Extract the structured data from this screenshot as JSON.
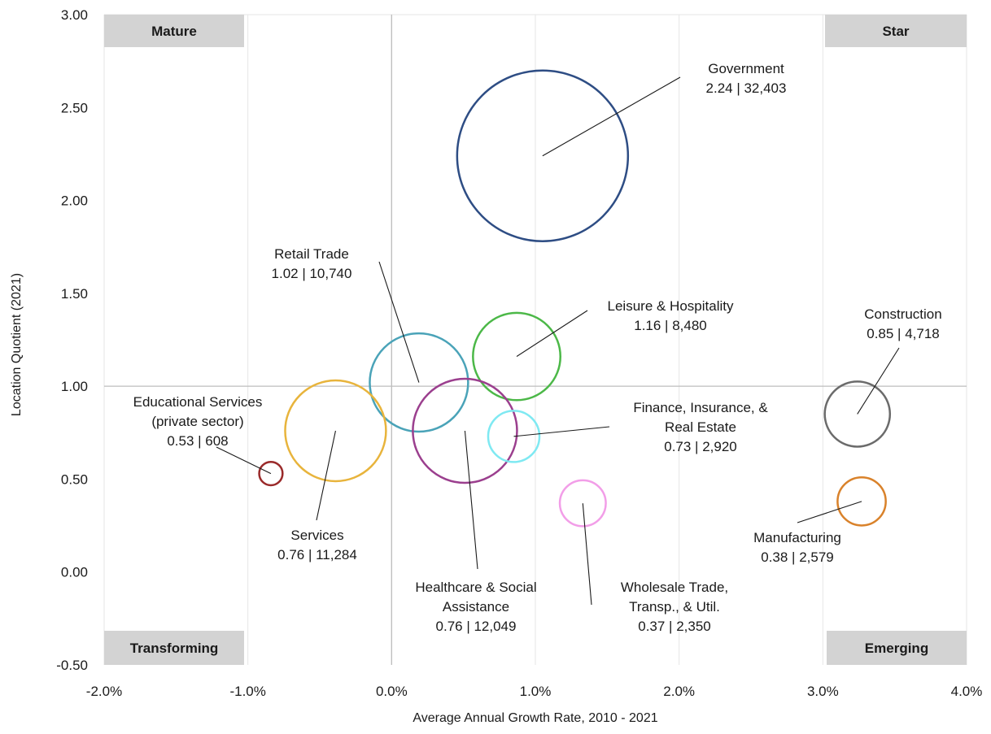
{
  "chart_data": {
    "type": "bubble",
    "title": "",
    "xlabel": "Average Annual Growth Rate, 2010 - 2021",
    "ylabel": "Location Quotient (2021)",
    "xlim": [
      -0.02,
      0.04
    ],
    "ylim": [
      -0.5,
      3.0
    ],
    "x_ticks": [
      {
        "value": -0.02,
        "label": "-2.0%"
      },
      {
        "value": -0.01,
        "label": "-1.0%"
      },
      {
        "value": 0.0,
        "label": "0.0%"
      },
      {
        "value": 0.01,
        "label": "1.0%"
      },
      {
        "value": 0.02,
        "label": "2.0%"
      },
      {
        "value": 0.03,
        "label": "3.0%"
      },
      {
        "value": 0.04,
        "label": "4.0%"
      }
    ],
    "y_ticks": [
      {
        "value": 3.0,
        "label": "3.00"
      },
      {
        "value": 2.5,
        "label": "2.50"
      },
      {
        "value": 2.0,
        "label": "2.00"
      },
      {
        "value": 1.5,
        "label": "1.50"
      },
      {
        "value": 1.0,
        "label": "1.00"
      },
      {
        "value": 0.5,
        "label": "0.50"
      },
      {
        "value": 0.0,
        "label": "0.00"
      },
      {
        "value": -0.5,
        "label": "-0.50"
      }
    ],
    "grid": "vertical",
    "reference_lines": {
      "x": 0.0,
      "y": 1.0
    },
    "quadrants": [
      {
        "label": "Mature",
        "position": "top-left"
      },
      {
        "label": "Star",
        "position": "top-right"
      },
      {
        "label": "Transforming",
        "position": "bottom-left"
      },
      {
        "label": "Emerging",
        "position": "bottom-right"
      }
    ],
    "series": [
      {
        "name": "Government",
        "label_lines": [
          "Government",
          "2.24 | 32,403"
        ],
        "x": 0.0105,
        "y": 2.24,
        "size": 32403,
        "color": "#2e4d84"
      },
      {
        "name": "Retail Trade",
        "label_lines": [
          "Retail Trade",
          "1.02 | 10,740"
        ],
        "x": 0.0019,
        "y": 1.02,
        "size": 10740,
        "color": "#4aa3b8"
      },
      {
        "name": "Leisure & Hospitality",
        "label_lines": [
          "Leisure & Hospitality",
          "1.16 | 8,480"
        ],
        "x": 0.0087,
        "y": 1.16,
        "size": 8480,
        "color": "#4cb848"
      },
      {
        "name": "Construction",
        "label_lines": [
          "Construction",
          "0.85 | 4,718"
        ],
        "x": 0.0324,
        "y": 0.85,
        "size": 4718,
        "color": "#6b6b6b"
      },
      {
        "name": "Educational Services (private sector)",
        "label_lines": [
          "Educational Services",
          "(private sector)",
          "0.53 | 608"
        ],
        "x": -0.0084,
        "y": 0.53,
        "size": 608,
        "color": "#9a2a2a"
      },
      {
        "name": "Services",
        "label_lines": [
          "Services",
          "0.76 | 11,284"
        ],
        "x": -0.0039,
        "y": 0.76,
        "size": 11284,
        "color": "#e8b43c"
      },
      {
        "name": "Healthcare & Social Assistance",
        "label_lines": [
          "Healthcare & Social",
          "Assistance",
          "0.76 | 12,049"
        ],
        "x": 0.0051,
        "y": 0.76,
        "size": 12049,
        "color": "#9b3f8e"
      },
      {
        "name": "Finance, Insurance, & Real Estate",
        "label_lines": [
          "Finance, Insurance, &",
          "Real Estate",
          "0.73 | 2,920"
        ],
        "x": 0.0085,
        "y": 0.73,
        "size": 2920,
        "color": "#7fe9f2"
      },
      {
        "name": "Wholesale Trade, Transp., & Util.",
        "label_lines": [
          "Wholesale Trade,",
          "Transp., & Util.",
          "0.37 | 2,350"
        ],
        "x": 0.0133,
        "y": 0.37,
        "size": 2350,
        "color": "#f29ee8"
      },
      {
        "name": "Manufacturing",
        "label_lines": [
          "Manufacturing",
          "0.38 | 2,579"
        ],
        "x": 0.0327,
        "y": 0.38,
        "size": 2579,
        "color": "#d9822b"
      }
    ]
  }
}
